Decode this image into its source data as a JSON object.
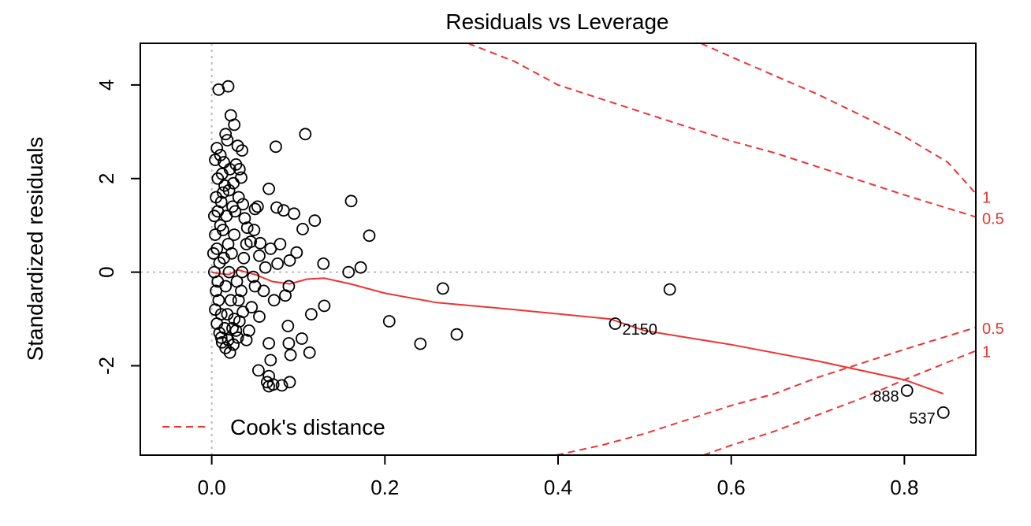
{
  "chart_data": {
    "type": "scatter",
    "title": "Residuals vs Leverage",
    "xlabel": "",
    "ylabel": "Standardized residuals",
    "xlim": [
      -0.0825,
      0.8825
    ],
    "ylim": [
      -3.91,
      4.89
    ],
    "x_ticks": [
      "0.0",
      "0.2",
      "0.4",
      "0.6",
      "0.8"
    ],
    "x_tick_values": [
      0.0,
      0.2,
      0.4,
      0.6,
      0.8
    ],
    "y_ticks": [
      "-2",
      "0",
      "2",
      "4"
    ],
    "y_tick_values": [
      -2,
      0,
      2,
      4
    ],
    "legend": {
      "label": "Cook's distance",
      "placement": "bottom-left"
    },
    "reference_lines": {
      "zero_residual": 0,
      "zero_leverage": 0
    },
    "cooks_distance": {
      "levels": [
        0.5,
        1
      ],
      "labels": [
        {
          "text": "1",
          "y": 1.6
        },
        {
          "text": "0.5",
          "y": 1.15
        },
        {
          "text": "0.5",
          "y": -1.2
        },
        {
          "text": "1",
          "y": -1.7
        }
      ],
      "curves": [
        {
          "level": 0.5,
          "points": [
            [
              0.296,
              4.89
            ],
            [
              0.35,
              4.5
            ],
            [
              0.4,
              4.0
            ],
            [
              0.45,
              3.7
            ],
            [
              0.5,
              3.4
            ],
            [
              0.55,
              3.1
            ],
            [
              0.6,
              2.8
            ],
            [
              0.65,
              2.55
            ],
            [
              0.7,
              2.25
            ],
            [
              0.75,
              1.95
            ],
            [
              0.8,
              1.65
            ],
            [
              0.8825,
              1.18
            ]
          ]
        },
        {
          "level": 1,
          "points": [
            [
              0.565,
              4.89
            ],
            [
              0.6,
              4.6
            ],
            [
              0.65,
              4.2
            ],
            [
              0.7,
              3.8
            ],
            [
              0.75,
              3.35
            ],
            [
              0.8,
              2.9
            ],
            [
              0.85,
              2.35
            ],
            [
              0.8825,
              1.68
            ]
          ]
        },
        {
          "level": 0.5,
          "points": [
            [
              0.398,
              -3.91
            ],
            [
              0.45,
              -3.7
            ],
            [
              0.5,
              -3.45
            ],
            [
              0.55,
              -3.15
            ],
            [
              0.6,
              -2.85
            ],
            [
              0.65,
              -2.6
            ],
            [
              0.7,
              -2.25
            ],
            [
              0.75,
              -1.95
            ],
            [
              0.8,
              -1.65
            ],
            [
              0.8825,
              -1.18
            ]
          ]
        },
        {
          "level": 1,
          "points": [
            [
              0.568,
              -3.91
            ],
            [
              0.6,
              -3.7
            ],
            [
              0.65,
              -3.4
            ],
            [
              0.7,
              -3.05
            ],
            [
              0.75,
              -2.7
            ],
            [
              0.8,
              -2.3
            ],
            [
              0.8825,
              -1.68
            ]
          ]
        }
      ]
    },
    "smooth_line": [
      [
        0.0,
        0.0
      ],
      [
        0.008,
        -0.03
      ],
      [
        0.02,
        -0.05
      ],
      [
        0.03,
        0.05
      ],
      [
        0.05,
        -0.05
      ],
      [
        0.07,
        -0.2
      ],
      [
        0.09,
        -0.25
      ],
      [
        0.11,
        -0.15
      ],
      [
        0.13,
        -0.13
      ],
      [
        0.16,
        -0.25
      ],
      [
        0.2,
        -0.45
      ],
      [
        0.26,
        -0.65
      ],
      [
        0.35,
        -0.8
      ],
      [
        0.46,
        -1.0
      ],
      [
        0.5,
        -1.25
      ],
      [
        0.6,
        -1.55
      ],
      [
        0.7,
        -1.9
      ],
      [
        0.8,
        -2.3
      ],
      [
        0.845,
        -2.6
      ]
    ],
    "labeled_points": [
      {
        "label": "2150",
        "x": 0.466,
        "y": -1.1
      },
      {
        "label": "888",
        "x": 0.803,
        "y": -2.53
      },
      {
        "label": "537",
        "x": 0.845,
        "y": -3.0
      }
    ],
    "points": [
      [
        0.108,
        2.95
      ],
      [
        0.074,
        2.68
      ],
      [
        0.161,
        1.52
      ],
      [
        0.119,
        1.1
      ],
      [
        0.182,
        0.78
      ],
      [
        0.129,
        0.18
      ],
      [
        0.172,
        0.1
      ],
      [
        0.158,
        0.0
      ],
      [
        0.267,
        -0.35
      ],
      [
        0.529,
        -0.37
      ],
      [
        0.13,
        -0.72
      ],
      [
        0.115,
        -0.9
      ],
      [
        0.205,
        -1.05
      ],
      [
        0.088,
        -1.15
      ],
      [
        0.104,
        -1.42
      ],
      [
        0.241,
        -1.53
      ],
      [
        0.283,
        -1.33
      ],
      [
        0.089,
        -1.52
      ],
      [
        0.066,
        -1.52
      ],
      [
        0.113,
        -1.72
      ],
      [
        0.091,
        -1.77
      ],
      [
        0.068,
        -1.88
      ],
      [
        0.054,
        -2.1
      ],
      [
        0.066,
        -2.22
      ],
      [
        0.064,
        -2.35
      ],
      [
        0.071,
        -2.4
      ],
      [
        0.066,
        -2.44
      ],
      [
        0.081,
        -2.42
      ],
      [
        0.09,
        -2.35
      ],
      [
        0.066,
        1.78
      ],
      [
        0.095,
        1.25
      ],
      [
        0.075,
        1.38
      ],
      [
        0.083,
        1.32
      ],
      [
        0.105,
        0.92
      ],
      [
        0.098,
        0.42
      ],
      [
        0.09,
        0.25
      ],
      [
        0.079,
        0.6
      ],
      [
        0.068,
        0.5
      ],
      [
        0.076,
        0.18
      ],
      [
        0.089,
        -0.3
      ],
      [
        0.085,
        -0.5
      ],
      [
        0.072,
        -0.6
      ],
      [
        0.06,
        -0.4
      ],
      [
        0.055,
        0.35
      ],
      [
        0.053,
        1.4
      ],
      [
        0.05,
        1.35
      ],
      [
        0.049,
        0.9
      ],
      [
        0.045,
        0.65
      ],
      [
        0.056,
        0.62
      ],
      [
        0.062,
        0.1
      ],
      [
        0.048,
        -0.1
      ],
      [
        0.05,
        -0.3
      ],
      [
        0.046,
        -0.75
      ],
      [
        0.055,
        -0.95
      ],
      [
        0.043,
        -1.25
      ],
      [
        0.04,
        -1.45
      ],
      [
        0.008,
        3.9
      ],
      [
        0.019,
        3.97
      ],
      [
        0.022,
        3.35
      ],
      [
        0.026,
        3.15
      ],
      [
        0.016,
        2.95
      ],
      [
        0.018,
        2.82
      ],
      [
        0.03,
        2.7
      ],
      [
        0.035,
        2.6
      ],
      [
        0.006,
        2.65
      ],
      [
        0.01,
        2.5
      ],
      [
        0.014,
        2.35
      ],
      [
        0.028,
        2.3
      ],
      [
        0.032,
        2.2
      ],
      [
        0.034,
        2.02
      ],
      [
        0.025,
        1.9
      ],
      [
        0.02,
        1.75
      ],
      [
        0.031,
        1.6
      ],
      [
        0.036,
        1.45
      ],
      [
        0.027,
        1.3
      ],
      [
        0.038,
        1.15
      ],
      [
        0.041,
        0.95
      ],
      [
        0.04,
        0.6
      ],
      [
        0.037,
        0.3
      ],
      [
        0.035,
        0.0
      ],
      [
        0.034,
        -0.4
      ],
      [
        0.036,
        -0.85
      ],
      [
        0.032,
        -1.05
      ],
      [
        0.028,
        -1.25
      ],
      [
        0.03,
        -1.4
      ],
      [
        0.025,
        -1.55
      ],
      [
        0.021,
        -1.72
      ],
      [
        0.016,
        -1.62
      ],
      [
        0.012,
        -1.5
      ],
      [
        0.009,
        -1.3
      ],
      [
        0.006,
        -1.1
      ],
      [
        0.004,
        -0.8
      ],
      [
        0.005,
        -0.4
      ],
      [
        0.003,
        0.0
      ],
      [
        0.002,
        0.4
      ],
      [
        0.004,
        0.8
      ],
      [
        0.003,
        1.2
      ],
      [
        0.005,
        1.6
      ],
      [
        0.007,
        2.0
      ],
      [
        0.004,
        2.4
      ],
      [
        0.012,
        2.1
      ],
      [
        0.015,
        1.85
      ],
      [
        0.011,
        1.5
      ],
      [
        0.017,
        1.2
      ],
      [
        0.013,
        0.9
      ],
      [
        0.019,
        0.6
      ],
      [
        0.014,
        0.3
      ],
      [
        0.02,
        0.0
      ],
      [
        0.016,
        -0.3
      ],
      [
        0.022,
        -0.6
      ],
      [
        0.018,
        -0.9
      ],
      [
        0.024,
        -1.2
      ],
      [
        0.011,
        -1.4
      ],
      [
        0.008,
        -0.6
      ],
      [
        0.009,
        0.2
      ],
      [
        0.01,
        1.0
      ],
      [
        0.023,
        0.4
      ],
      [
        0.026,
        0.8
      ],
      [
        0.029,
        -0.2
      ],
      [
        0.031,
        -0.6
      ],
      [
        0.026,
        -1.0
      ],
      [
        0.024,
        1.4
      ],
      [
        0.021,
        2.2
      ],
      [
        0.013,
        1.7
      ],
      [
        0.007,
        1.3
      ],
      [
        0.006,
        0.5
      ],
      [
        0.007,
        -0.2
      ],
      [
        0.011,
        -0.9
      ],
      [
        0.015,
        -1.2
      ],
      [
        0.019,
        -1.45
      ]
    ]
  }
}
